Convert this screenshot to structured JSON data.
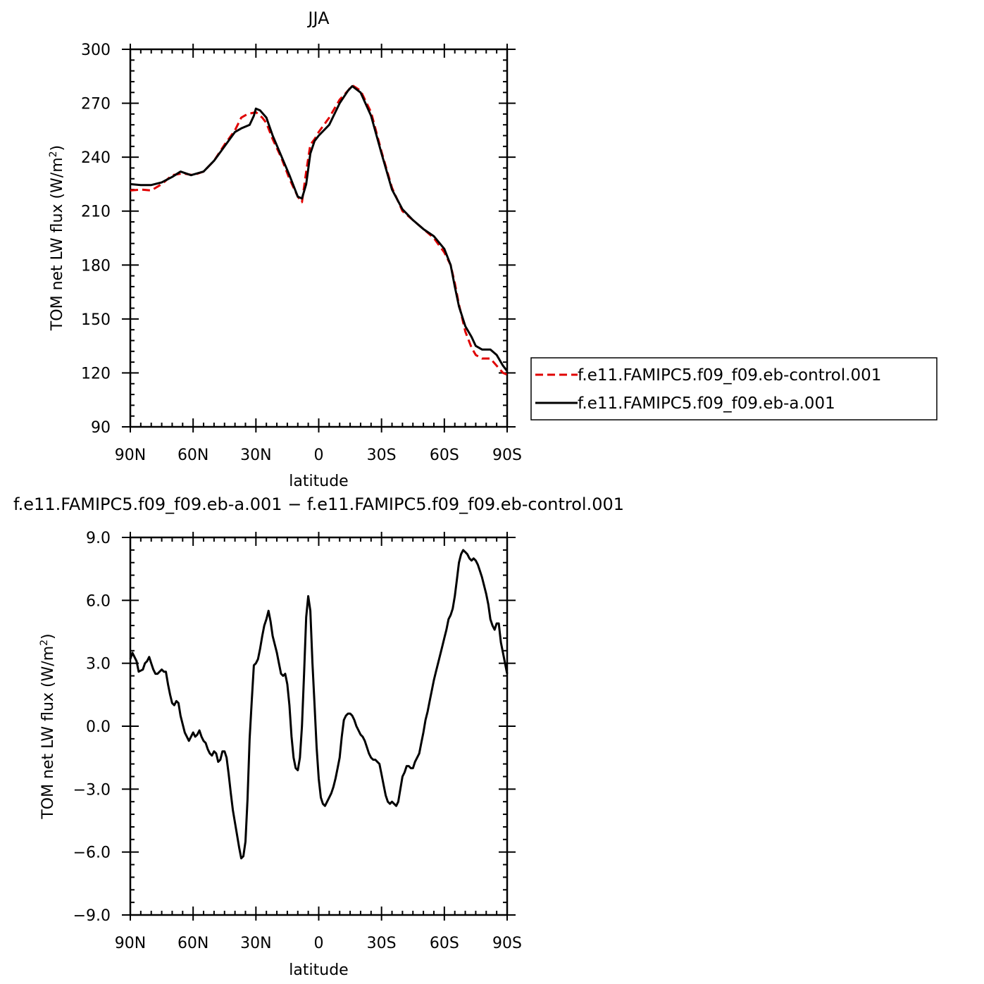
{
  "chart_data": [
    {
      "type": "line",
      "title": "JJA",
      "xlabel": "latitude",
      "ylabel": "TOM net LW flux (W/m²)",
      "ylabel_main": "TOM net LW flux (W/m",
      "ylabel_sup": "2",
      "ylabel_tail": ")",
      "xlim": [
        -90,
        90
      ],
      "ylim": [
        90,
        300
      ],
      "x_ticks": [
        -90,
        -60,
        -30,
        0,
        30,
        60,
        90
      ],
      "x_tick_labels": [
        "90N",
        "60N",
        "30N",
        "0",
        "30S",
        "60S",
        "90S"
      ],
      "y_ticks": [
        90,
        120,
        150,
        180,
        210,
        240,
        270,
        300
      ],
      "y_tick_labels": [
        "90",
        "120",
        "150",
        "180",
        "210",
        "240",
        "270",
        "300"
      ],
      "legend_position": "right",
      "series": [
        {
          "name": "f.e11.FAMIPC5.f09_f09.eb-control.001",
          "color": "#e00000",
          "dash": "dashed",
          "x": [
            -90,
            -85,
            -80,
            -75,
            -70,
            -65,
            -60,
            -55,
            -50,
            -45,
            -40,
            -37,
            -34,
            -30,
            -27,
            -25,
            -22,
            -18,
            -14,
            -10,
            -8,
            -6,
            -4,
            -2,
            0,
            5,
            10,
            14,
            16,
            20,
            25,
            30,
            35,
            40,
            45,
            50,
            55,
            60,
            63,
            65,
            67,
            70,
            73,
            75,
            78,
            80,
            82,
            85,
            88,
            90
          ],
          "y": [
            221.5,
            222,
            221.5,
            225,
            230,
            231,
            230,
            232,
            238,
            247,
            255,
            262,
            264,
            265,
            262,
            259,
            250,
            240,
            228,
            218,
            215,
            232,
            247,
            250,
            254,
            262,
            272,
            277,
            280,
            277,
            265,
            243,
            223,
            210,
            205,
            200,
            195,
            187,
            180,
            170,
            158,
            143,
            134,
            130,
            128,
            128,
            128,
            124,
            120,
            119
          ]
        },
        {
          "name": "f.e11.FAMIPC5.f09_f09.eb-a.001",
          "color": "#000000",
          "dash": "solid",
          "x": [
            -90,
            -85,
            -80,
            -75,
            -70,
            -66,
            -61,
            -55,
            -50,
            -45,
            -40,
            -37,
            -33,
            -31,
            -30,
            -28,
            -25,
            -22,
            -18,
            -14,
            -10,
            -8,
            -6,
            -4,
            -2,
            0,
            5,
            10,
            14,
            16,
            20,
            25,
            30,
            35,
            40,
            45,
            50,
            55,
            60,
            63,
            65,
            67,
            70,
            73,
            75,
            78,
            80,
            82,
            85,
            88,
            90
          ],
          "y": [
            225,
            224.5,
            224.5,
            226,
            229,
            232,
            230,
            232,
            238,
            246,
            254,
            256,
            258,
            263,
            267,
            266,
            262,
            252,
            241,
            230,
            218,
            217,
            225,
            242,
            249,
            252,
            258,
            270,
            277,
            279.5,
            276,
            263,
            242,
            222,
            211,
            205,
            200,
            196,
            189,
            180,
            168,
            157,
            146,
            140,
            135,
            133,
            133,
            133,
            130,
            124,
            121
          ]
        }
      ]
    },
    {
      "type": "line",
      "title": "f.e11.FAMIPC5.f09_f09.eb-a.001 − f.e11.FAMIPC5.f09_f09.eb-control.001",
      "xlabel": "latitude",
      "ylabel": "TOM net LW flux (W/m²)",
      "ylabel_main": "TOM net LW flux (W/m",
      "ylabel_sup": "2",
      "ylabel_tail": ")",
      "xlim": [
        -90,
        90
      ],
      "ylim": [
        -9,
        9
      ],
      "x_ticks": [
        -90,
        -60,
        -30,
        0,
        30,
        60,
        90
      ],
      "x_tick_labels": [
        "90N",
        "60N",
        "30N",
        "0",
        "30S",
        "60S",
        "90S"
      ],
      "y_ticks": [
        -9,
        -6,
        -3,
        0,
        3,
        6,
        9
      ],
      "y_tick_labels": [
        "−9.0",
        "−6.0",
        "−3.0",
        "0.0",
        "3.0",
        "6.0",
        "9.0"
      ],
      "series": [
        {
          "color": "#000000",
          "dash": "solid",
          "x": [
            -90,
            -89,
            -87,
            -86,
            -84,
            -83,
            -82,
            -81,
            -80,
            -79,
            -78,
            -77,
            -76,
            -75,
            -74,
            -73,
            -72,
            -71,
            -70,
            -69,
            -68,
            -67,
            -66,
            -65,
            -64,
            -63,
            -62,
            -61,
            -60,
            -59,
            -58,
            -57,
            -56,
            -55,
            -54,
            -53,
            -52,
            -51,
            -50,
            -49,
            -48,
            -47,
            -46,
            -45,
            -44,
            -43,
            -42,
            -41,
            -40,
            -39,
            -38,
            -37,
            -36,
            -35,
            -34,
            -33,
            -32,
            -31,
            -30,
            -29,
            -28,
            -27,
            -26,
            -25,
            -24,
            -23,
            -22,
            -21,
            -20,
            -19,
            -18,
            -17,
            -16,
            -15,
            -14,
            -13,
            -12,
            -11,
            -10,
            -9,
            -8,
            -7,
            -6,
            -5,
            -4,
            -3,
            -2,
            -1,
            0,
            1,
            2,
            3,
            4,
            5,
            6,
            7,
            8,
            9,
            10,
            11,
            12,
            13,
            14,
            15,
            16,
            17,
            18,
            19,
            20,
            21,
            22,
            23,
            24,
            25,
            26,
            27,
            28,
            29,
            30,
            31,
            32,
            33,
            34,
            35,
            36,
            37,
            38,
            39,
            40,
            41,
            42,
            43,
            44,
            45,
            46,
            47,
            48,
            49,
            50,
            51,
            52,
            53,
            54,
            55,
            56,
            57,
            58,
            59,
            60,
            61,
            62,
            63,
            64,
            65,
            66,
            67,
            68,
            69,
            70,
            71,
            72,
            73,
            74,
            75,
            76,
            77,
            78,
            79,
            80,
            81,
            82,
            83,
            84,
            85,
            86,
            87,
            88,
            89,
            90
          ],
          "y": [
            3.2,
            3.5,
            3.1,
            2.6,
            2.7,
            3.0,
            3.1,
            3.3,
            3.0,
            2.7,
            2.5,
            2.5,
            2.6,
            2.7,
            2.6,
            2.6,
            2.0,
            1.5,
            1.1,
            1.0,
            1.2,
            1.1,
            0.5,
            0.1,
            -0.3,
            -0.5,
            -0.7,
            -0.5,
            -0.3,
            -0.5,
            -0.4,
            -0.2,
            -0.5,
            -0.7,
            -0.8,
            -1.1,
            -1.3,
            -1.4,
            -1.2,
            -1.3,
            -1.7,
            -1.6,
            -1.2,
            -1.2,
            -1.5,
            -2.3,
            -3.2,
            -4.0,
            -4.6,
            -5.2,
            -5.8,
            -6.3,
            -6.2,
            -5.5,
            -3.5,
            -0.6,
            1.2,
            2.9,
            3.0,
            3.2,
            3.7,
            4.3,
            4.8,
            5.1,
            5.5,
            5.0,
            4.3,
            3.9,
            3.5,
            3.0,
            2.5,
            2.4,
            2.5,
            2.0,
            1.0,
            -0.5,
            -1.5,
            -2.0,
            -2.1,
            -1.5,
            0.0,
            2.5,
            5.2,
            6.2,
            5.5,
            3.0,
            1.0,
            -1.0,
            -2.5,
            -3.4,
            -3.7,
            -3.8,
            -3.6,
            -3.4,
            -3.2,
            -2.9,
            -2.5,
            -2.0,
            -1.5,
            -0.5,
            0.3,
            0.5,
            0.6,
            0.6,
            0.5,
            0.3,
            0.0,
            -0.2,
            -0.4,
            -0.5,
            -0.7,
            -1.0,
            -1.3,
            -1.5,
            -1.6,
            -1.6,
            -1.7,
            -1.8,
            -2.3,
            -2.8,
            -3.3,
            -3.6,
            -3.7,
            -3.6,
            -3.7,
            -3.8,
            -3.6,
            -3.0,
            -2.4,
            -2.2,
            -1.9,
            -1.9,
            -2.0,
            -2.0,
            -1.7,
            -1.5,
            -1.3,
            -0.8,
            -0.3,
            0.3,
            0.7,
            1.2,
            1.7,
            2.2,
            2.6,
            3.0,
            3.4,
            3.8,
            4.2,
            4.6,
            5.1,
            5.3,
            5.6,
            6.2,
            7.0,
            7.8,
            8.2,
            8.4,
            8.3,
            8.2,
            8.0,
            7.9,
            8.0,
            7.9,
            7.7,
            7.4,
            7.1,
            6.7,
            6.3,
            5.8,
            5.1,
            4.8,
            4.6,
            4.9,
            4.9,
            4.0,
            3.5,
            3.0,
            2.5
          ]
        }
      ]
    }
  ]
}
